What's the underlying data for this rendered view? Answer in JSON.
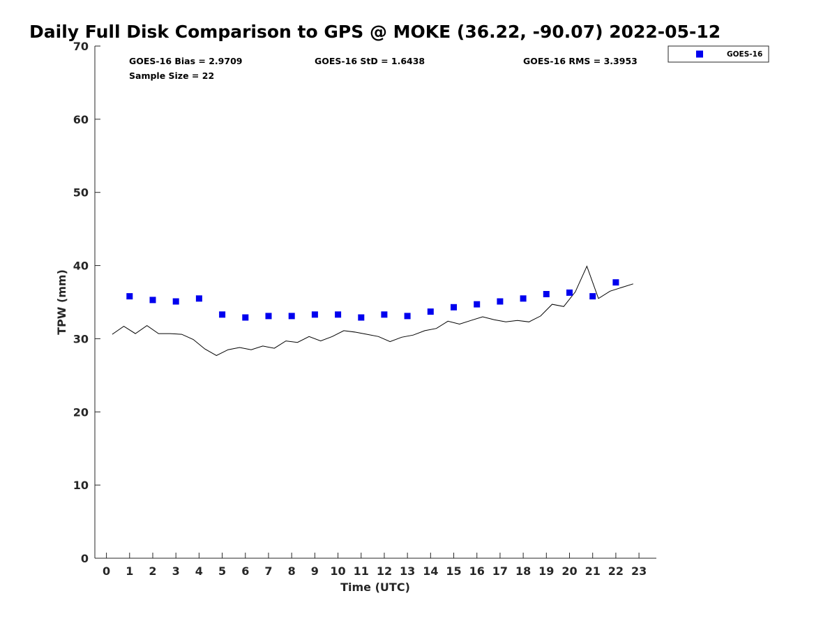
{
  "chart_data": {
    "type": "scatter",
    "title": "Daily Full Disk Comparison to GPS @ MOKE (36.22, -90.07) 2022-05-12",
    "xlabel": "Time (UTC)",
    "ylabel": "TPW (mm)",
    "xlim": [
      -0.5,
      23.75
    ],
    "ylim": [
      0,
      70
    ],
    "xticks": [
      0,
      1,
      2,
      3,
      4,
      5,
      6,
      7,
      8,
      9,
      10,
      11,
      12,
      13,
      14,
      15,
      16,
      17,
      18,
      19,
      20,
      21,
      22,
      23
    ],
    "yticks": [
      0,
      10,
      20,
      30,
      40,
      50,
      60,
      70
    ],
    "grid": false,
    "legend_position": "outside-top-right",
    "stats": {
      "bias": "GOES-16 Bias = 2.9709",
      "std": "GOES-16 StD = 1.6438",
      "rms": "GOES-16 RMS = 3.3953",
      "sample": "Sample Size = 22"
    },
    "series": [
      {
        "name": "GOES-16",
        "kind": "scatter",
        "marker": "square",
        "color": "#0000ee",
        "x": [
          1,
          2,
          3,
          4,
          5,
          6,
          7,
          8,
          9,
          10,
          11,
          12,
          13,
          14,
          15,
          16,
          17,
          18,
          19,
          20,
          21,
          22
        ],
        "y": [
          35.8,
          35.3,
          35.1,
          35.5,
          33.3,
          32.9,
          33.1,
          33.1,
          33.3,
          33.3,
          32.9,
          33.3,
          33.1,
          33.7,
          34.3,
          34.7,
          35.1,
          35.5,
          36.1,
          36.3,
          35.8,
          37.7
        ]
      },
      {
        "kind": "line",
        "color": "#000000",
        "x": [
          0.25,
          0.75,
          1.25,
          1.75,
          2.25,
          2.75,
          3.25,
          3.75,
          4.25,
          4.75,
          5.25,
          5.75,
          6.25,
          6.75,
          7.25,
          7.75,
          8.25,
          8.75,
          9.25,
          9.75,
          10.25,
          10.75,
          11.25,
          11.75,
          12.25,
          12.75,
          13.25,
          13.75,
          14.25,
          14.75,
          15.25,
          15.75,
          16.25,
          16.75,
          17.25,
          17.75,
          18.25,
          18.75,
          19.25,
          19.75,
          20.25,
          20.75,
          21.25,
          21.75,
          22.25,
          22.75
        ],
        "y": [
          30.6,
          31.7,
          30.7,
          31.8,
          30.7,
          30.7,
          30.6,
          29.9,
          28.6,
          27.7,
          28.5,
          28.8,
          28.5,
          29.0,
          28.7,
          29.7,
          29.5,
          30.3,
          29.7,
          30.3,
          31.1,
          30.9,
          30.6,
          30.3,
          29.6,
          30.2,
          30.5,
          31.1,
          31.4,
          32.4,
          32.0,
          32.5,
          33.0,
          32.6,
          32.3,
          32.5,
          32.3,
          33.1,
          34.7,
          34.4,
          36.4,
          39.9,
          35.5,
          36.5,
          37.0,
          37.5
        ]
      }
    ]
  }
}
